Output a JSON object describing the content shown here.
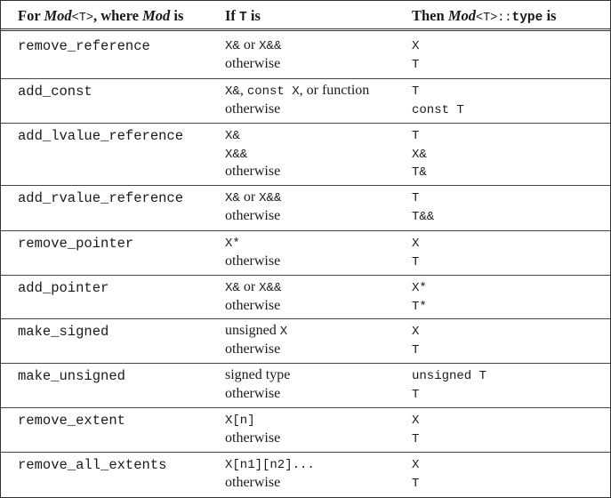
{
  "header": {
    "col1_prefix": "For ",
    "col1_mod": "Mod",
    "col1_code": "<T>",
    "col1_mid": ", where ",
    "col1_mod2": "Mod",
    "col1_suffix": " is",
    "col2_prefix": "If ",
    "col2_code": "T",
    "col2_suffix": " is",
    "col3_prefix": "Then ",
    "col3_mod": "Mod",
    "col3_code": "<T>::",
    "col3_code2": "type",
    "col3_suffix": " is"
  },
  "rows": [
    {
      "mod": "remove_reference",
      "lines": [
        {
          "cond": [
            [
              "mono",
              "X&"
            ],
            [
              "serif",
              " or "
            ],
            [
              "mono",
              "X&&"
            ]
          ],
          "res": [
            [
              "mono",
              "X"
            ]
          ]
        },
        {
          "cond": [
            [
              "serif",
              "otherwise"
            ]
          ],
          "res": [
            [
              "mono",
              "T"
            ]
          ]
        }
      ]
    },
    {
      "mod": "add_const",
      "lines": [
        {
          "cond": [
            [
              "mono",
              "X&"
            ],
            [
              "serif",
              ", "
            ],
            [
              "mono",
              "const X"
            ],
            [
              "serif",
              ", or function"
            ]
          ],
          "res": [
            [
              "mono",
              "T"
            ]
          ]
        },
        {
          "cond": [
            [
              "serif",
              "otherwise"
            ]
          ],
          "res": [
            [
              "mono",
              "const T"
            ]
          ]
        }
      ]
    },
    {
      "mod": "add_lvalue_reference",
      "lines": [
        {
          "cond": [
            [
              "mono",
              "X&"
            ]
          ],
          "res": [
            [
              "mono",
              "T"
            ]
          ]
        },
        {
          "cond": [
            [
              "mono",
              "X&&"
            ]
          ],
          "res": [
            [
              "mono",
              "X&"
            ]
          ]
        },
        {
          "cond": [
            [
              "serif",
              "otherwise"
            ]
          ],
          "res": [
            [
              "mono",
              "T&"
            ]
          ]
        }
      ]
    },
    {
      "mod": "add_rvalue_reference",
      "lines": [
        {
          "cond": [
            [
              "mono",
              "X&"
            ],
            [
              "serif",
              " or "
            ],
            [
              "mono",
              "X&&"
            ]
          ],
          "res": [
            [
              "mono",
              "T"
            ]
          ]
        },
        {
          "cond": [
            [
              "serif",
              "otherwise"
            ]
          ],
          "res": [
            [
              "mono",
              "T&&"
            ]
          ]
        }
      ]
    },
    {
      "mod": "remove_pointer",
      "lines": [
        {
          "cond": [
            [
              "mono",
              "X*"
            ]
          ],
          "res": [
            [
              "mono",
              "X"
            ]
          ]
        },
        {
          "cond": [
            [
              "serif",
              "otherwise"
            ]
          ],
          "res": [
            [
              "mono",
              "T"
            ]
          ]
        }
      ]
    },
    {
      "mod": "add_pointer",
      "lines": [
        {
          "cond": [
            [
              "mono",
              "X&"
            ],
            [
              "serif",
              " or "
            ],
            [
              "mono",
              "X&&"
            ]
          ],
          "res": [
            [
              "mono",
              "X*"
            ]
          ]
        },
        {
          "cond": [
            [
              "serif",
              "otherwise"
            ]
          ],
          "res": [
            [
              "mono",
              "T*"
            ]
          ]
        }
      ]
    },
    {
      "mod": "make_signed",
      "lines": [
        {
          "cond": [
            [
              "serif",
              "unsigned "
            ],
            [
              "mono",
              "X"
            ]
          ],
          "res": [
            [
              "mono",
              "X"
            ]
          ]
        },
        {
          "cond": [
            [
              "serif",
              "otherwise"
            ]
          ],
          "res": [
            [
              "mono",
              "T"
            ]
          ]
        }
      ]
    },
    {
      "mod": "make_unsigned",
      "lines": [
        {
          "cond": [
            [
              "serif",
              "signed type"
            ]
          ],
          "res": [
            [
              "mono",
              "unsigned T"
            ]
          ]
        },
        {
          "cond": [
            [
              "serif",
              "otherwise"
            ]
          ],
          "res": [
            [
              "mono",
              "T"
            ]
          ]
        }
      ]
    },
    {
      "mod": "remove_extent",
      "lines": [
        {
          "cond": [
            [
              "mono",
              "X[n]"
            ]
          ],
          "res": [
            [
              "mono",
              "X"
            ]
          ]
        },
        {
          "cond": [
            [
              "serif",
              "otherwise"
            ]
          ],
          "res": [
            [
              "mono",
              "T"
            ]
          ]
        }
      ]
    },
    {
      "mod": "remove_all_extents",
      "lines": [
        {
          "cond": [
            [
              "mono",
              "X[n1][n2]..."
            ]
          ],
          "res": [
            [
              "mono",
              "X"
            ]
          ]
        },
        {
          "cond": [
            [
              "serif",
              "otherwise"
            ]
          ],
          "res": [
            [
              "mono",
              "T"
            ]
          ]
        }
      ]
    }
  ]
}
